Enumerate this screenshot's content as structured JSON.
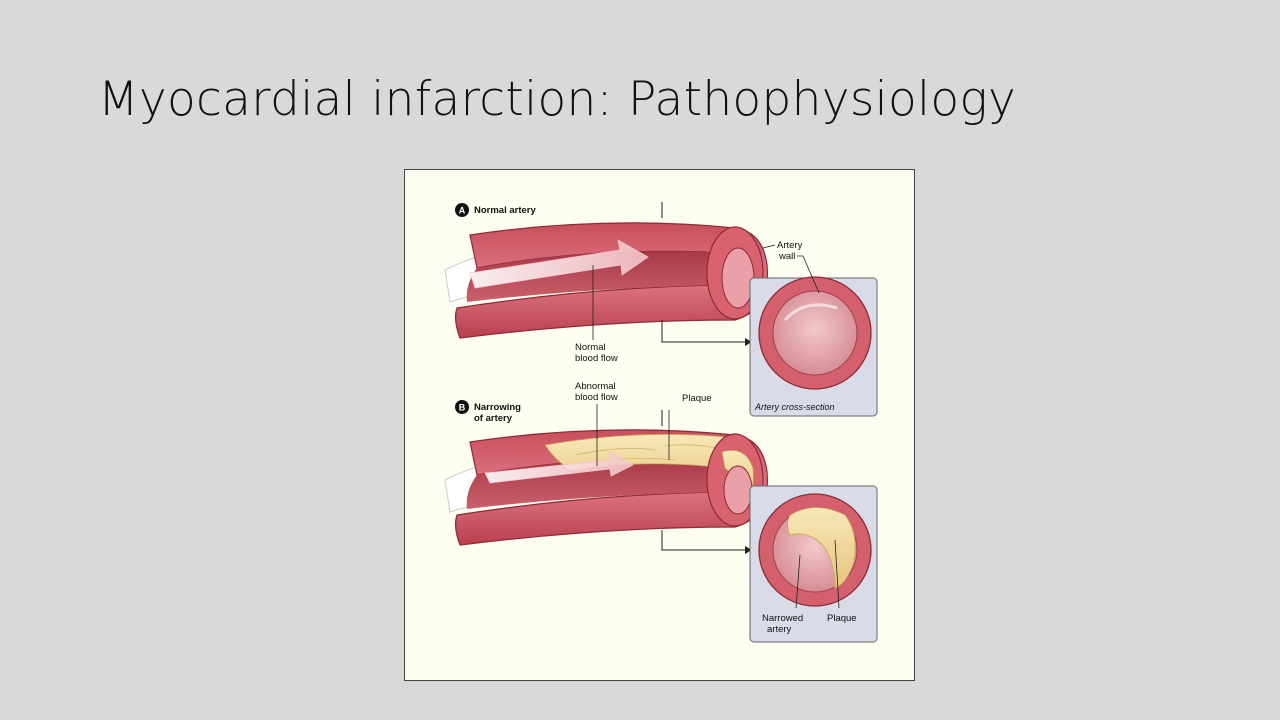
{
  "slide": {
    "title": "Myocardial infarction: Pathophysiology"
  },
  "figure": {
    "panel_a": {
      "letter": "A",
      "title": "Normal artery",
      "label_wall_1": "Artery",
      "label_wall_2": "wall",
      "label_flow_1": "Normal",
      "label_flow_2": "blood flow",
      "cross_section_caption": "Artery cross-section"
    },
    "panel_b": {
      "letter": "B",
      "title_1": "Narrowing",
      "title_2": "of artery",
      "label_abnormal_1": "Abnormal",
      "label_abnormal_2": "blood flow",
      "label_plaque": "Plaque",
      "label_narrowed_1": "Narrowed",
      "label_narrowed_2": "artery",
      "label_plaque_cs": "Plaque"
    },
    "colors": {
      "artery_wall": "#d4606d",
      "artery_inner": "#b84653",
      "plaque": "#f0dca0",
      "background": "#fdfdf2",
      "inset_panel": "#d9dbe8"
    }
  }
}
